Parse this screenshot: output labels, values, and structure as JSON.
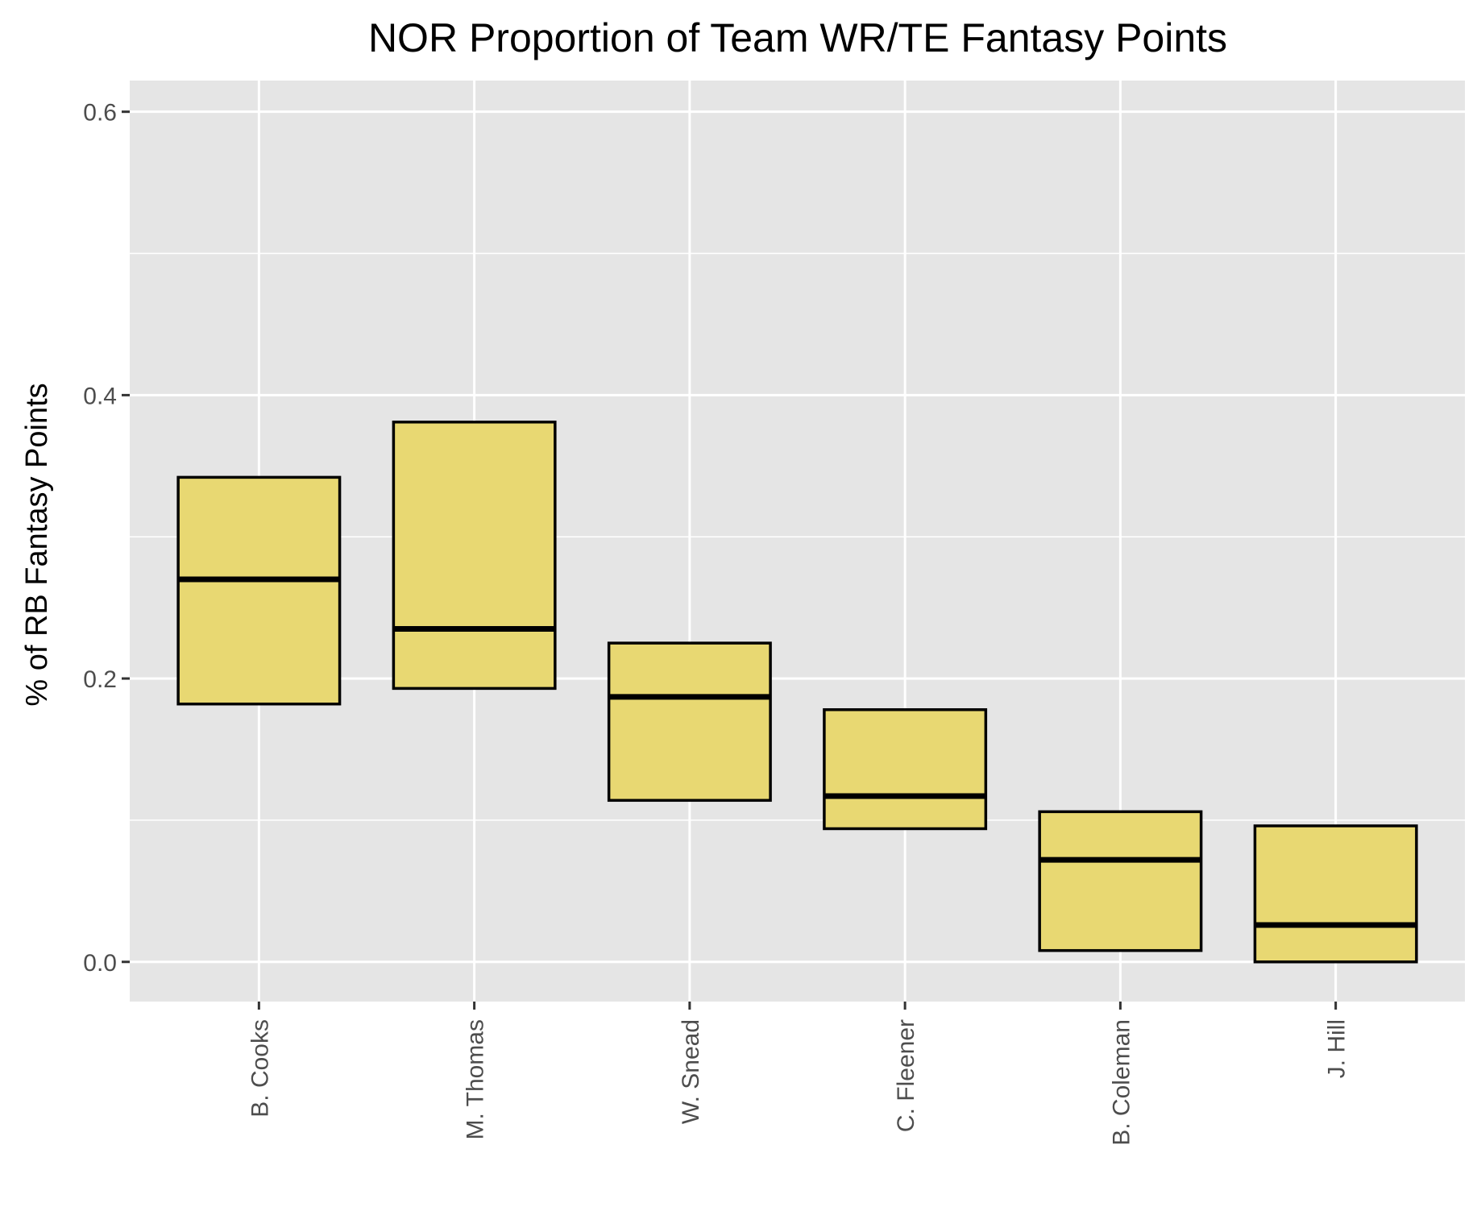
{
  "chart_data": {
    "type": "box",
    "title": "NOR Proportion of Team WR/TE Fantasy Points",
    "xlabel": "",
    "ylabel": "% of RB Fantasy Points",
    "ylim": [
      -0.028,
      0.622
    ],
    "yticks": [
      0.0,
      0.2,
      0.4,
      0.6
    ],
    "ytick_labels": [
      "0.0",
      "0.2",
      "0.4",
      "0.6"
    ],
    "categories": [
      "B. Cooks",
      "M. Thomas",
      "W. Snead",
      "C. Fleener",
      "B. Coleman",
      "J. Hill"
    ],
    "boxes": [
      {
        "category": "B. Cooks",
        "q1": 0.182,
        "median": 0.27,
        "q3": 0.342
      },
      {
        "category": "M. Thomas",
        "q1": 0.193,
        "median": 0.235,
        "q3": 0.381
      },
      {
        "category": "W. Snead",
        "q1": 0.114,
        "median": 0.187,
        "q3": 0.225
      },
      {
        "category": "C. Fleener",
        "q1": 0.094,
        "median": 0.117,
        "q3": 0.178
      },
      {
        "category": "B. Coleman",
        "q1": 0.008,
        "median": 0.072,
        "q3": 0.106
      },
      {
        "category": "J. Hill",
        "q1": 0.0,
        "median": 0.026,
        "q3": 0.096
      }
    ],
    "grid": true,
    "colors": {
      "panel_background": "#e5e5e5",
      "grid": "#ffffff",
      "box_fill": "#e8d872",
      "box_stroke": "#000000"
    }
  }
}
